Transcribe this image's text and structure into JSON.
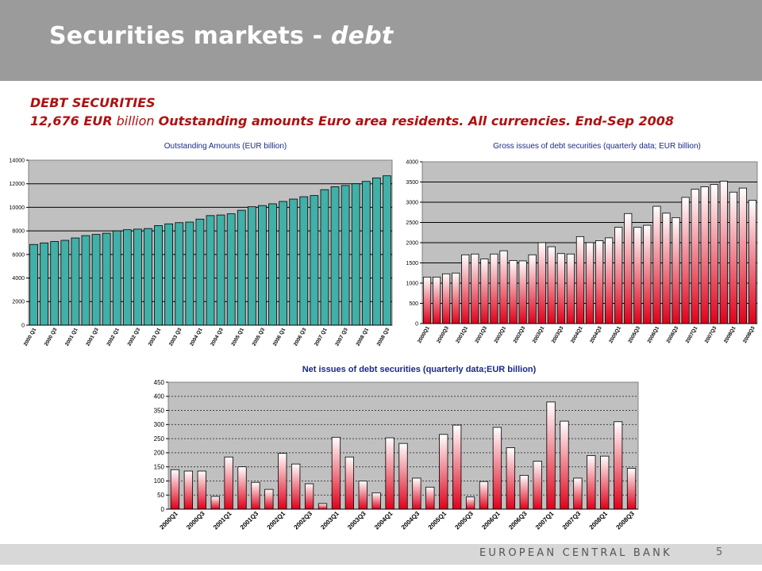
{
  "header": {
    "title_main": "Securities markets - ",
    "title_italic": "debt"
  },
  "subtitle": {
    "line1": "DEBT SECURITIES",
    "line2_amount": "12,676 EUR",
    "line2_unit": " billion ",
    "line2_rest": " Outstanding amounts Euro area residents. All currencies. End-Sep 2008"
  },
  "footer": {
    "bank": "EUROPEAN CENTRAL BANK",
    "page": "5"
  },
  "colors": {
    "bar_top": "#ffffff",
    "bar_bottom": "#e0001a",
    "plot_bg": "#c0c0c0",
    "outstanding_bar": "#40b0a8",
    "title_blue": "#1a2a8a"
  },
  "chart_data": [
    {
      "type": "bar",
      "title": "Outstanding Amounts (EUR billion)",
      "ylim": [
        0,
        14000
      ],
      "yticks": [
        "0",
        "2000",
        "4000",
        "6000",
        "8000",
        "10000",
        "12000",
        "14000"
      ],
      "xticklabels": [
        "2000 Q1",
        "2000 Q3",
        "2001 Q1",
        "2001 Q3",
        "2002 Q1",
        "2002 Q3",
        "2003 Q1",
        "2003 Q3",
        "2004 Q1",
        "2004 Q3",
        "2005 Q1",
        "2005 Q3",
        "2006 Q1",
        "2006 Q3",
        "2007 Q1",
        "2007 Q3",
        "2008 Q1",
        "2008 Q3"
      ],
      "values": [
        6850,
        6980,
        7100,
        7200,
        7400,
        7600,
        7700,
        7800,
        8000,
        8100,
        8150,
        8200,
        8450,
        8600,
        8700,
        8750,
        9000,
        9300,
        9350,
        9450,
        9750,
        10050,
        10150,
        10300,
        10500,
        10700,
        10900,
        11000,
        11500,
        11750,
        11850,
        12000,
        12200,
        12500,
        12676
      ],
      "grid": true
    },
    {
      "type": "bar",
      "title": "Gross issues of debt securities (quarterly data; EUR billion)",
      "ylim": [
        0,
        4000
      ],
      "yticks": [
        "0",
        "500",
        "1000",
        "1500",
        "2000",
        "2500",
        "3000",
        "3500",
        "4000"
      ],
      "xticklabels": [
        "2000Q1",
        "2000Q3",
        "2001Q1",
        "2001Q3",
        "2002Q1",
        "2002Q3",
        "2003Q1",
        "2003Q3",
        "2004Q1",
        "2004Q3",
        "2005Q1",
        "2005Q3",
        "2006Q1",
        "2006Q3",
        "2007Q1",
        "2007Q3",
        "2008Q1",
        "2008Q3"
      ],
      "values": [
        1150,
        1150,
        1230,
        1250,
        1700,
        1720,
        1600,
        1720,
        1800,
        1560,
        1550,
        1700,
        2000,
        1900,
        1730,
        1720,
        2150,
        2000,
        2050,
        2120,
        2380,
        2720,
        2380,
        2430,
        2900,
        2730,
        2620,
        3120,
        3320,
        3380,
        3440,
        3520,
        3250,
        3350,
        3050
      ],
      "grid": true
    },
    {
      "type": "bar",
      "title": "Net issues of debt securities (quarterly data;EUR billion)",
      "ylim": [
        0,
        450
      ],
      "yticks": [
        "0",
        "50",
        "100",
        "150",
        "200",
        "250",
        "300",
        "350",
        "400",
        "450"
      ],
      "xticklabels": [
        "2000Q1",
        "2000Q3",
        "2001Q1",
        "2001Q3",
        "2002Q1",
        "2002Q3",
        "2003Q1",
        "2003Q3",
        "2004Q1",
        "2004Q3",
        "2005Q1",
        "2005Q3",
        "2006Q1",
        "2006Q3",
        "2007Q1",
        "2007Q3",
        "2008Q1",
        "2008Q3"
      ],
      "values": [
        140,
        135,
        135,
        45,
        185,
        150,
        95,
        70,
        198,
        160,
        90,
        20,
        255,
        185,
        100,
        58,
        253,
        233,
        110,
        78,
        265,
        298,
        43,
        98,
        290,
        218,
        120,
        170,
        380,
        312,
        110,
        190,
        188,
        310,
        145
      ],
      "grid": true
    }
  ]
}
